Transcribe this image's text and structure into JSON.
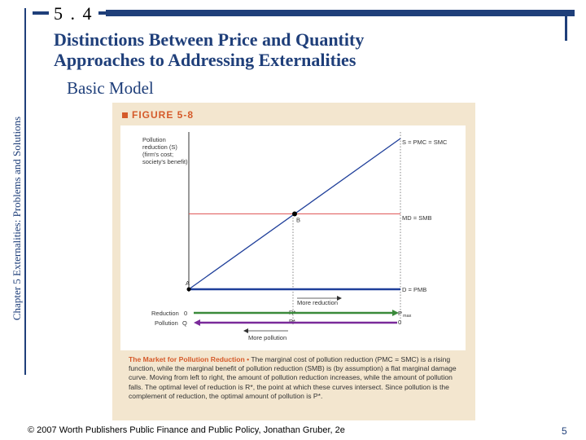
{
  "slide": {
    "section_number": "5 . 4",
    "title_line1": "Distinctions Between Price and Quantity",
    "title_line2": "Approaches to Addressing Externalities",
    "subtitle": "Basic Model",
    "side_title": "Chapter 5 Externalities: Problems and Solutions",
    "footer": "© 2007 Worth Publishers   Public Finance and Public Policy, Jonathan Gruber, 2e",
    "page_number": "5"
  },
  "figure": {
    "header": "FIGURE 5-8",
    "caption_bold": "The Market for Pollution Reduction •",
    "caption_text": " The marginal cost of pollution reduction (PMC = SMC) is a rising function, while the marginal benefit of pollution reduction (SMB) is (by assumption) a flat marginal damage curve. Moving from left to right, the amount of pollution reduction increases, while the amount of pollution falls. The optimal level of reduction is R*, the point at which these curves intersect. Since pollution is the complement of reduction, the optimal amount of pollution is P*."
  },
  "colors": {
    "accent": "#1f3f7a",
    "figure_header": "#d55a2a",
    "figure_bg": "#f3e6cf",
    "mc_line": "#1f3f9a",
    "md_line": "#e05a5a",
    "reduction_arrow": "#7a2a9a",
    "more_reduction_arrow": "#3a8a3a"
  },
  "chart_data": {
    "type": "line",
    "ylabel": "Pollution reduction (S) (firm's cost; society's benefit)",
    "series": [
      {
        "name": "S = PMC = SMC",
        "x": [
          0,
          1
        ],
        "y": [
          0,
          1
        ]
      },
      {
        "name": "MD = SMB",
        "x": [
          0,
          1
        ],
        "y": [
          0.5,
          0.5
        ]
      },
      {
        "name": "D = PMB",
        "x": [
          0,
          1
        ],
        "y": [
          0,
          0
        ]
      }
    ],
    "points": [
      {
        "label": "A",
        "x": 0,
        "y": 0
      },
      {
        "label": "B",
        "x": 0.5,
        "y": 0.5
      }
    ],
    "annotations": {
      "more_reduction": "More reduction",
      "more_pollution": "More pollution",
      "reduction": "Reduction",
      "pollution": "Pollution",
      "zero": "0",
      "q_max": "Q",
      "r_star": "R*",
      "p_star": "P*",
      "p_max": "P",
      "sub_max": "max",
      "zero_right": "0"
    }
  }
}
